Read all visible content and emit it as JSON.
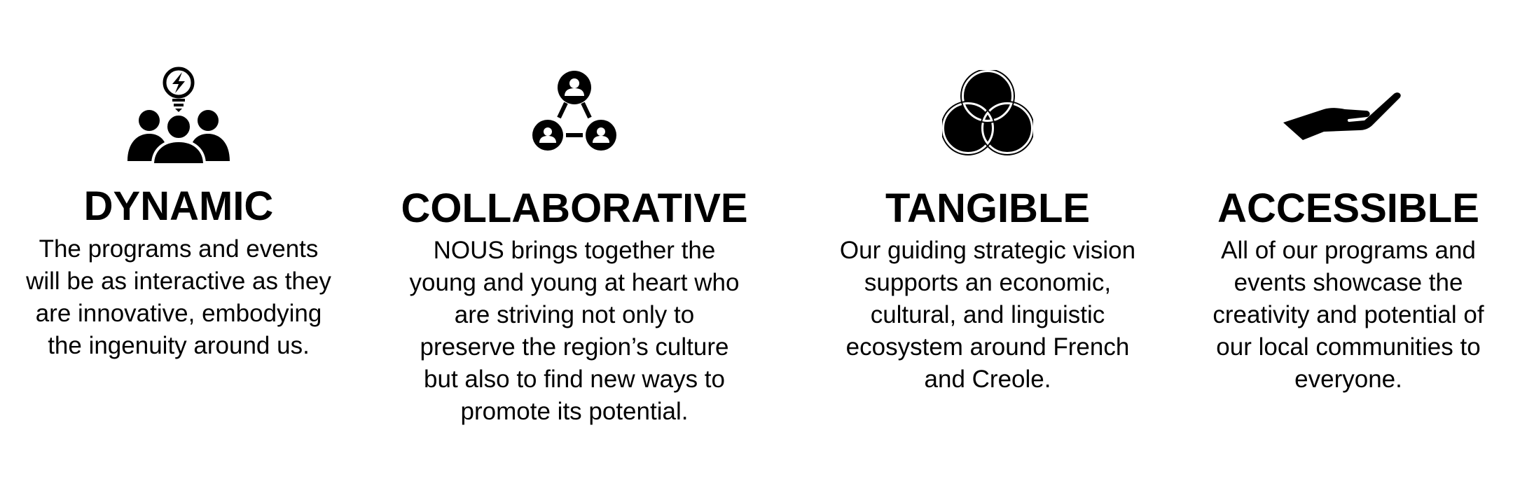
{
  "columns": [
    {
      "title": "DYNAMIC",
      "icon": "team-ideas-icon",
      "lines": [
        "The programs and events",
        "will be as interactive as they",
        "are innovative, embodying",
        "the ingenuity around us."
      ]
    },
    {
      "title": "COLLABORATIVE",
      "icon": "connected-people-icon",
      "lines": [
        "NOUS brings together the",
        "young and young at heart who",
        "are striving not only to",
        "preserve the region’s culture",
        "but also to find new ways to",
        "promote its potential."
      ]
    },
    {
      "title": "TANGIBLE",
      "icon": "venn-diagram-icon",
      "lines": [
        "Our guiding strategic vision",
        "supports an economic,",
        "cultural, and linguistic",
        "ecosystem around French",
        "and Creole."
      ]
    },
    {
      "title": "ACCESSIBLE",
      "icon": "open-hand-icon",
      "lines": [
        "All of our programs and",
        "events showcase the",
        "creativity and potential of",
        "our local communities to",
        "everyone."
      ]
    }
  ],
  "colors": {
    "text": "#000000",
    "icon": "#000000",
    "background": "#ffffff"
  }
}
